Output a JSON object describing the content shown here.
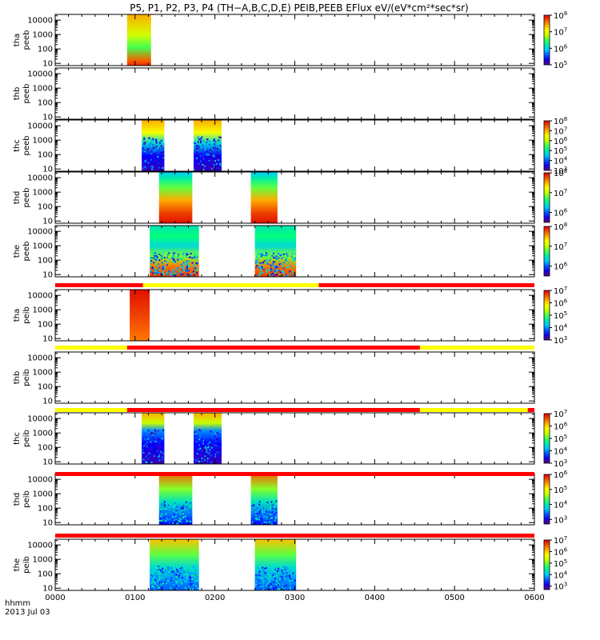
{
  "title": "P5, P1, P2, P3, P4 (TH−A,B,C,D,E) PEIB,PEEB EFlux eV/(eV*cm²*sec*sr)",
  "xaxis": {
    "label_lines": [
      "hhmm",
      "2013 Jul 03"
    ],
    "ticks": [
      {
        "label": "0000",
        "value": 0
      },
      {
        "label": "0100",
        "value": 60
      },
      {
        "label": "0200",
        "value": 120
      },
      {
        "label": "0300",
        "value": 180
      },
      {
        "label": "0400",
        "value": 240
      },
      {
        "label": "0500",
        "value": 300
      },
      {
        "label": "0600",
        "value": 360
      }
    ]
  },
  "chart_data": {
    "type": "heatmap",
    "x_units": "minutes since 0000 UT",
    "xlim": [
      0,
      360
    ],
    "ylim_energy_eV": [
      7,
      25000
    ],
    "y_scale": "log",
    "y_ticks": [
      10,
      100,
      1000,
      10000
    ],
    "panels": [
      {
        "probe": "tha",
        "product": "peeb",
        "ylabel": [
          "tha",
          "peeb"
        ],
        "colorbar": {
          "min_exp": 5,
          "max_exp": 8,
          "ticks": [
            5,
            6,
            7,
            8
          ]
        },
        "blocks": [
          {
            "start": 54,
            "end": 72,
            "style": "tha_peeb"
          }
        ]
      },
      {
        "probe": "thb",
        "product": "peeb",
        "ylabel": [
          "thb",
          "peeb"
        ],
        "colorbar": null,
        "blocks": []
      },
      {
        "probe": "thc",
        "product": "peeb",
        "ylabel": [
          "thc",
          "peeb"
        ],
        "colorbar": {
          "min_exp": 3,
          "max_exp": 8,
          "ticks": [
            3,
            4,
            5,
            6,
            7,
            8
          ]
        },
        "blocks": [
          {
            "start": 65,
            "end": 82,
            "style": "noisy_e"
          },
          {
            "start": 104,
            "end": 125,
            "style": "noisy_e"
          }
        ]
      },
      {
        "probe": "thd",
        "product": "peeb",
        "ylabel": [
          "thd",
          "peeb"
        ],
        "colorbar": {
          "min_exp": 5.5,
          "max_exp": 8,
          "ticks": [
            6,
            7,
            8
          ]
        },
        "blocks": [
          {
            "start": 78,
            "end": 103,
            "style": "smooth_e"
          },
          {
            "start": 147,
            "end": 167,
            "style": "smooth_e"
          }
        ]
      },
      {
        "probe": "the",
        "product": "peeb",
        "ylabel": [
          "the",
          "peeb"
        ],
        "colorbar": {
          "min_exp": 5.5,
          "max_exp": 8,
          "ticks": [
            6,
            7,
            8
          ]
        },
        "blocks": [
          {
            "start": 71,
            "end": 108,
            "style": "smooth_e2"
          },
          {
            "start": 150,
            "end": 181,
            "style": "smooth_e2"
          }
        ]
      },
      {
        "probe": "tha",
        "product": "peib",
        "ylabel": [
          "tha",
          "peib"
        ],
        "colorbar": {
          "min_exp": 3,
          "max_exp": 7,
          "ticks": [
            3,
            4,
            5,
            6,
            7
          ]
        },
        "blocks": [
          {
            "start": 56,
            "end": 71,
            "style": "hot_i"
          }
        ]
      },
      {
        "probe": "thb",
        "product": "peib",
        "ylabel": [
          "thb",
          "peib"
        ],
        "colorbar": null,
        "blocks": []
      },
      {
        "probe": "thc",
        "product": "peib",
        "ylabel": [
          "thc",
          "peib"
        ],
        "colorbar": {
          "min_exp": 3,
          "max_exp": 7,
          "ticks": [
            3,
            4,
            5,
            6,
            7
          ]
        },
        "blocks": [
          {
            "start": 65,
            "end": 82,
            "style": "noisy_i"
          },
          {
            "start": 104,
            "end": 125,
            "style": "noisy_i"
          }
        ]
      },
      {
        "probe": "thd",
        "product": "peib",
        "ylabel": [
          "thd",
          "peib"
        ],
        "colorbar": {
          "min_exp": 2.7,
          "max_exp": 6,
          "ticks": [
            3,
            4,
            5,
            6
          ]
        },
        "blocks": [
          {
            "start": 78,
            "end": 103,
            "style": "ion"
          },
          {
            "start": 147,
            "end": 167,
            "style": "ion"
          }
        ]
      },
      {
        "probe": "the",
        "product": "peib",
        "ylabel": [
          "the",
          "peib"
        ],
        "colorbar": {
          "min_exp": 2.7,
          "max_exp": 7,
          "ticks": [
            3,
            4,
            5,
            6,
            7
          ]
        },
        "blocks": [
          {
            "start": 71,
            "end": 108,
            "style": "ion2"
          },
          {
            "start": 150,
            "end": 181,
            "style": "ion2"
          }
        ]
      }
    ],
    "mode_bars": [
      {
        "after_panel": 4,
        "segments": [
          {
            "start": 0,
            "end": 66,
            "color": "#ff0000"
          },
          {
            "start": 66,
            "end": 198,
            "color": "#ffff00"
          },
          {
            "start": 198,
            "end": 360,
            "color": "#ff0000"
          }
        ]
      },
      {
        "after_panel": 5,
        "segments": [
          {
            "start": 0,
            "end": 54,
            "color": "#ffff00"
          },
          {
            "start": 54,
            "end": 274,
            "color": "#ff0000"
          },
          {
            "start": 274,
            "end": 360,
            "color": "#ffff00"
          }
        ]
      },
      {
        "after_panel": 6,
        "segments": [
          {
            "start": 0,
            "end": 54,
            "color": "#ffff00"
          },
          {
            "start": 54,
            "end": 274,
            "color": "#ff0000"
          },
          {
            "start": 274,
            "end": 355,
            "color": "#ffff00"
          },
          {
            "start": 355,
            "end": 360,
            "color": "#ff0000"
          }
        ]
      },
      {
        "after_panel": 7,
        "segments": [
          {
            "start": 0,
            "end": 360,
            "color": "#ff0000"
          }
        ]
      },
      {
        "after_panel": 8,
        "segments": [
          {
            "start": 0,
            "end": 360,
            "color": "#ff0000"
          }
        ]
      }
    ]
  }
}
